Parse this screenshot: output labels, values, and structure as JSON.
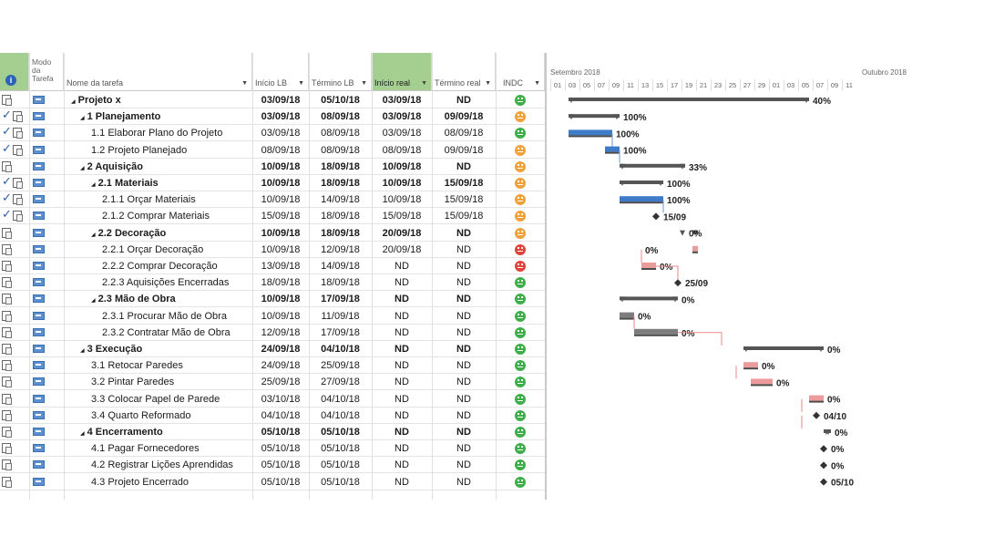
{
  "columns": {
    "indicators_icon": "info-icon",
    "mode": "Modo da Tarefa",
    "name": "Nome da tarefa",
    "start_lb": "Início LB",
    "end_lb": "Término LB",
    "start_real": "Início real",
    "end_real": "Término real",
    "indc": "INDC"
  },
  "timeline": {
    "month1": "Setembro 2018",
    "month2": "Outubro 2018",
    "days": [
      "01",
      "03",
      "05",
      "07",
      "09",
      "11",
      "13",
      "15",
      "17",
      "19",
      "21",
      "23",
      "25",
      "27",
      "29",
      "01",
      "03",
      "05",
      "07",
      "09",
      "11"
    ]
  },
  "colors": {
    "green": "#3fae4a",
    "orange": "#f0a23a",
    "red": "#e0443a",
    "selected_header": "#a4cf90",
    "baseline_blue": "#3f7cc8",
    "critical_red": "#e88a8a"
  },
  "tasks": [
    {
      "name": "Projeto x",
      "prefix": "◢",
      "bold": true,
      "level": 0,
      "start_lb": "03/09/18",
      "end_lb": "05/10/18",
      "start_real": "03/09/18",
      "end_real": "ND",
      "indc": "g",
      "done": false,
      "gantt_label": "40%"
    },
    {
      "name": "1 Planejamento",
      "prefix": "◢",
      "bold": true,
      "level": 1,
      "start_lb": "03/09/18",
      "end_lb": "08/09/18",
      "start_real": "03/09/18",
      "end_real": "09/09/18",
      "indc": "o",
      "done": true,
      "gantt_label": "100%"
    },
    {
      "name": "1.1 Elaborar Plano do Projeto",
      "prefix": "",
      "bold": false,
      "level": 2,
      "start_lb": "03/09/18",
      "end_lb": "08/09/18",
      "start_real": "03/09/18",
      "end_real": "08/09/18",
      "indc": "g",
      "done": true,
      "gantt_label": "100%"
    },
    {
      "name": "1.2 Projeto Planejado",
      "prefix": "",
      "bold": false,
      "level": 2,
      "start_lb": "08/09/18",
      "end_lb": "08/09/18",
      "start_real": "08/09/18",
      "end_real": "09/09/18",
      "indc": "o",
      "done": true,
      "gantt_label": "100%"
    },
    {
      "name": "2 Aquisição",
      "prefix": "◢",
      "bold": true,
      "level": 1,
      "start_lb": "10/09/18",
      "end_lb": "18/09/18",
      "start_real": "10/09/18",
      "end_real": "ND",
      "indc": "o",
      "done": false,
      "gantt_label": "33%"
    },
    {
      "name": "2.1 Materiais",
      "prefix": "◢",
      "bold": true,
      "level": 2,
      "start_lb": "10/09/18",
      "end_lb": "18/09/18",
      "start_real": "10/09/18",
      "end_real": "15/09/18",
      "indc": "o",
      "done": true,
      "gantt_label": "100%"
    },
    {
      "name": "2.1.1 Orçar Materiais",
      "prefix": "",
      "bold": false,
      "level": 3,
      "start_lb": "10/09/18",
      "end_lb": "14/09/18",
      "start_real": "10/09/18",
      "end_real": "15/09/18",
      "indc": "o",
      "done": true,
      "gantt_label": "100%"
    },
    {
      "name": "2.1.2 Comprar Materiais",
      "prefix": "",
      "bold": false,
      "level": 3,
      "start_lb": "15/09/18",
      "end_lb": "18/09/18",
      "start_real": "15/09/18",
      "end_real": "15/09/18",
      "indc": "o",
      "done": true,
      "gantt_label": "15/09"
    },
    {
      "name": "2.2 Decoração",
      "prefix": "◢",
      "bold": true,
      "level": 2,
      "start_lb": "10/09/18",
      "end_lb": "18/09/18",
      "start_real": "20/09/18",
      "end_real": "ND",
      "indc": "o",
      "done": false,
      "gantt_label": "0%"
    },
    {
      "name": "2.2.1 Orçar Decoração",
      "prefix": "",
      "bold": false,
      "level": 3,
      "start_lb": "10/09/18",
      "end_lb": "12/09/18",
      "start_real": "20/09/18",
      "end_real": "ND",
      "indc": "r",
      "done": false,
      "gantt_label": "0%"
    },
    {
      "name": "2.2.2 Comprar Decoração",
      "prefix": "",
      "bold": false,
      "level": 3,
      "start_lb": "13/09/18",
      "end_lb": "14/09/18",
      "start_real": "ND",
      "end_real": "ND",
      "indc": "r",
      "done": false,
      "gantt_label": "0%"
    },
    {
      "name": "2.2.3 Aquisições Encerradas",
      "prefix": "",
      "bold": false,
      "level": 3,
      "start_lb": "18/09/18",
      "end_lb": "18/09/18",
      "start_real": "ND",
      "end_real": "ND",
      "indc": "g",
      "done": false,
      "gantt_label": "25/09"
    },
    {
      "name": "2.3 Mão de Obra",
      "prefix": "◢",
      "bold": true,
      "level": 2,
      "start_lb": "10/09/18",
      "end_lb": "17/09/18",
      "start_real": "ND",
      "end_real": "ND",
      "indc": "g",
      "done": false,
      "gantt_label": "0%"
    },
    {
      "name": "2.3.1 Procurar Mão de Obra",
      "prefix": "",
      "bold": false,
      "level": 3,
      "start_lb": "10/09/18",
      "end_lb": "11/09/18",
      "start_real": "ND",
      "end_real": "ND",
      "indc": "g",
      "done": false,
      "gantt_label": "0%"
    },
    {
      "name": "2.3.2 Contratar Mão de Obra",
      "prefix": "",
      "bold": false,
      "level": 3,
      "start_lb": "12/09/18",
      "end_lb": "17/09/18",
      "start_real": "ND",
      "end_real": "ND",
      "indc": "g",
      "done": false,
      "gantt_label": "0%"
    },
    {
      "name": "3 Execução",
      "prefix": "◢",
      "bold": true,
      "level": 1,
      "start_lb": "24/09/18",
      "end_lb": "04/10/18",
      "start_real": "ND",
      "end_real": "ND",
      "indc": "g",
      "done": false,
      "gantt_label": "0%"
    },
    {
      "name": "3.1 Retocar Paredes",
      "prefix": "",
      "bold": false,
      "level": 2,
      "start_lb": "24/09/18",
      "end_lb": "25/09/18",
      "start_real": "ND",
      "end_real": "ND",
      "indc": "g",
      "done": false,
      "gantt_label": "0%"
    },
    {
      "name": "3.2 Pintar Paredes",
      "prefix": "",
      "bold": false,
      "level": 2,
      "start_lb": "25/09/18",
      "end_lb": "27/09/18",
      "start_real": "ND",
      "end_real": "ND",
      "indc": "g",
      "done": false,
      "gantt_label": "0%"
    },
    {
      "name": "3.3 Colocar Papel de Parede",
      "prefix": "",
      "bold": false,
      "level": 2,
      "start_lb": "03/10/18",
      "end_lb": "04/10/18",
      "start_real": "ND",
      "end_real": "ND",
      "indc": "g",
      "done": false,
      "gantt_label": "0%"
    },
    {
      "name": "3.4 Quarto Reformado",
      "prefix": "",
      "bold": false,
      "level": 2,
      "start_lb": "04/10/18",
      "end_lb": "04/10/18",
      "start_real": "ND",
      "end_real": "ND",
      "indc": "g",
      "done": false,
      "gantt_label": "04/10"
    },
    {
      "name": "4 Encerramento",
      "prefix": "◢",
      "bold": true,
      "level": 1,
      "start_lb": "05/10/18",
      "end_lb": "05/10/18",
      "start_real": "ND",
      "end_real": "ND",
      "indc": "g",
      "done": false,
      "gantt_label": "0%"
    },
    {
      "name": "4.1 Pagar Fornecedores",
      "prefix": "",
      "bold": false,
      "level": 2,
      "start_lb": "05/10/18",
      "end_lb": "05/10/18",
      "start_real": "ND",
      "end_real": "ND",
      "indc": "g",
      "done": false,
      "gantt_label": "0%"
    },
    {
      "name": "4.2 Registrar Lições Aprendidas",
      "prefix": "",
      "bold": false,
      "level": 2,
      "start_lb": "05/10/18",
      "end_lb": "05/10/18",
      "start_real": "ND",
      "end_real": "ND",
      "indc": "g",
      "done": false,
      "gantt_label": "0%"
    },
    {
      "name": "4.3 Projeto Encerrado",
      "prefix": "",
      "bold": false,
      "level": 2,
      "start_lb": "05/10/18",
      "end_lb": "05/10/18",
      "start_real": "ND",
      "end_real": "ND",
      "indc": "g",
      "done": false,
      "gantt_label": "05/10"
    }
  ]
}
